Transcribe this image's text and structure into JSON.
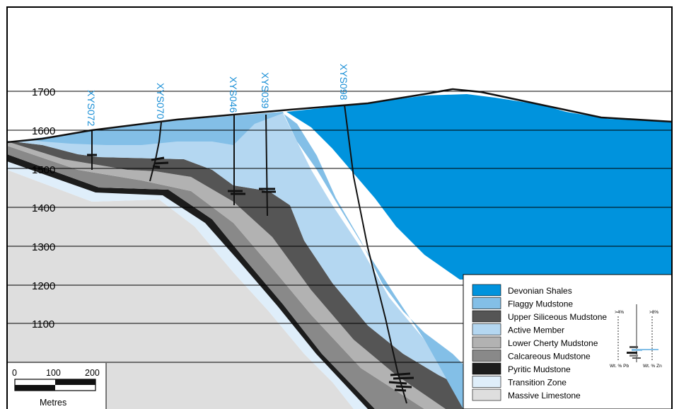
{
  "elevations": [
    "1700",
    "1600",
    "1500",
    "1400",
    "1300",
    "1200",
    "1100"
  ],
  "drillholes": [
    "XYS072",
    "XYS070",
    "XYS046",
    "XYS039",
    "XYS098"
  ],
  "legend": {
    "items": [
      {
        "label": "Devonian Shales",
        "color": "#0093dd"
      },
      {
        "label": "Flaggy Mudstone",
        "color": "#83bfe7"
      },
      {
        "label": "Upper Siliceous Mudstone",
        "color": "#555555"
      },
      {
        "label": "Active Member",
        "color": "#b4d7f1"
      },
      {
        "label": "Lower Cherty Mudstone",
        "color": "#b2b2b2"
      },
      {
        "label": "Calcareous Mudstone",
        "color": "#898989"
      },
      {
        "label": "Pyritic Mudstone",
        "color": "#1c1c1c"
      },
      {
        "label": "Transition Zone",
        "color": "#dfeefa"
      },
      {
        "label": "Massive Limestone",
        "color": "#dedede"
      }
    ],
    "assay": {
      "pb_threshold": ">4%",
      "zn_threshold": ">8%",
      "pb_axis": "Wt. % Pb",
      "zn_axis": "Wt. % Zn"
    }
  },
  "scale_bar": {
    "ticks": [
      "0",
      "100",
      "200"
    ],
    "unit": "Metres"
  }
}
